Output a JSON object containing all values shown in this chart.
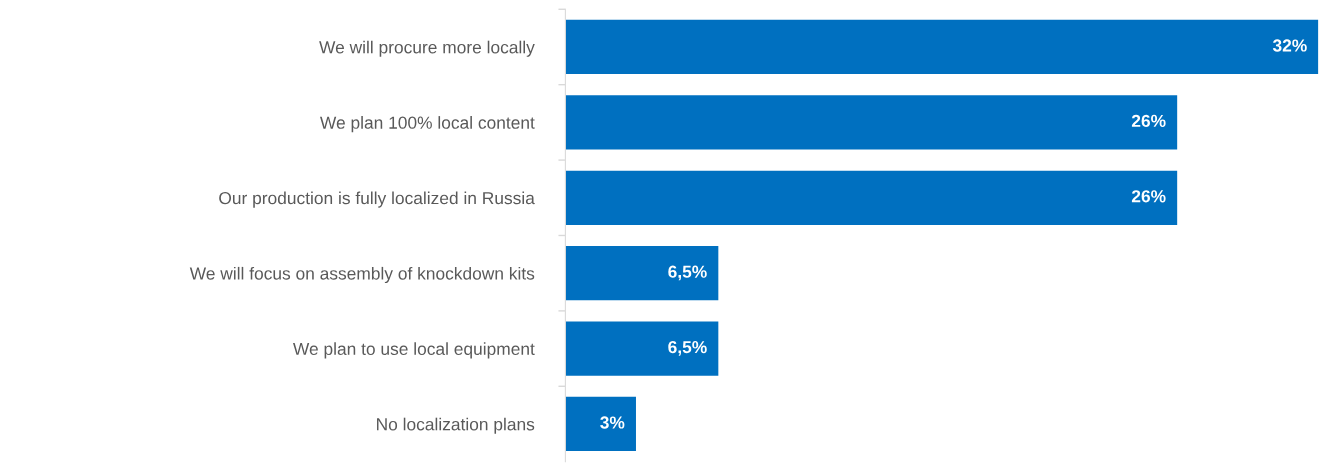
{
  "chart_data": {
    "type": "bar",
    "orientation": "horizontal",
    "categories": [
      "We will procure more locally",
      "We plan 100% local content",
      "Our production is fully localized in Russia",
      "We will focus on assembly of knockdown kits",
      "We plan to use local equipment",
      "No localization plans"
    ],
    "values": [
      32,
      26,
      26,
      6.5,
      6.5,
      3
    ],
    "value_labels": [
      "32%",
      "26%",
      "26%",
      "6,5%",
      "6,5%",
      "3%"
    ],
    "color": "#0070c0",
    "grid": false,
    "legend": false
  }
}
